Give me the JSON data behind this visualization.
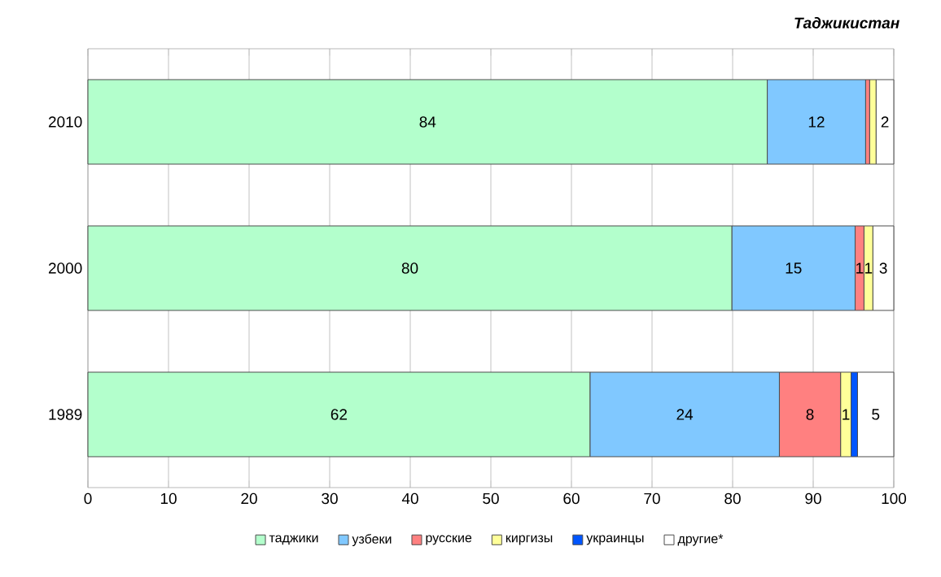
{
  "chart_data": {
    "type": "bar",
    "orientation": "horizontal",
    "stacked": true,
    "title": "Таджикистан",
    "categories": [
      "2010",
      "2000",
      "1989"
    ],
    "series": [
      {
        "name": "таджики",
        "color": "#b3ffcc",
        "values": [
          84.3,
          79.9,
          62.3
        ],
        "value_labels": [
          "84",
          "80",
          "62"
        ]
      },
      {
        "name": "узбеки",
        "color": "#80c8ff",
        "values": [
          12.2,
          15.3,
          23.5
        ],
        "value_labels": [
          "12",
          "15",
          "24"
        ]
      },
      {
        "name": "русские",
        "color": "#ff8080",
        "values": [
          0.5,
          1.1,
          7.6
        ],
        "value_labels": [
          null,
          "1",
          "8"
        ]
      },
      {
        "name": "киргизы",
        "color": "#ffff99",
        "values": [
          0.8,
          1.1,
          1.3
        ],
        "value_labels": [
          null,
          "1",
          "1"
        ]
      },
      {
        "name": "украинцы",
        "color": "#0055ff",
        "values": [
          0,
          0,
          0.8
        ],
        "value_labels": [
          null,
          null,
          null
        ]
      },
      {
        "name": "другие*",
        "color": "#ffffff",
        "values": [
          2.2,
          2.6,
          4.5
        ],
        "value_labels": [
          "2",
          "3",
          "5"
        ]
      }
    ],
    "xlim": [
      0,
      100
    ],
    "xticks": [
      0,
      10,
      20,
      30,
      40,
      50,
      60,
      70,
      80,
      90,
      100
    ],
    "grid": "x",
    "legend": "bottom"
  }
}
